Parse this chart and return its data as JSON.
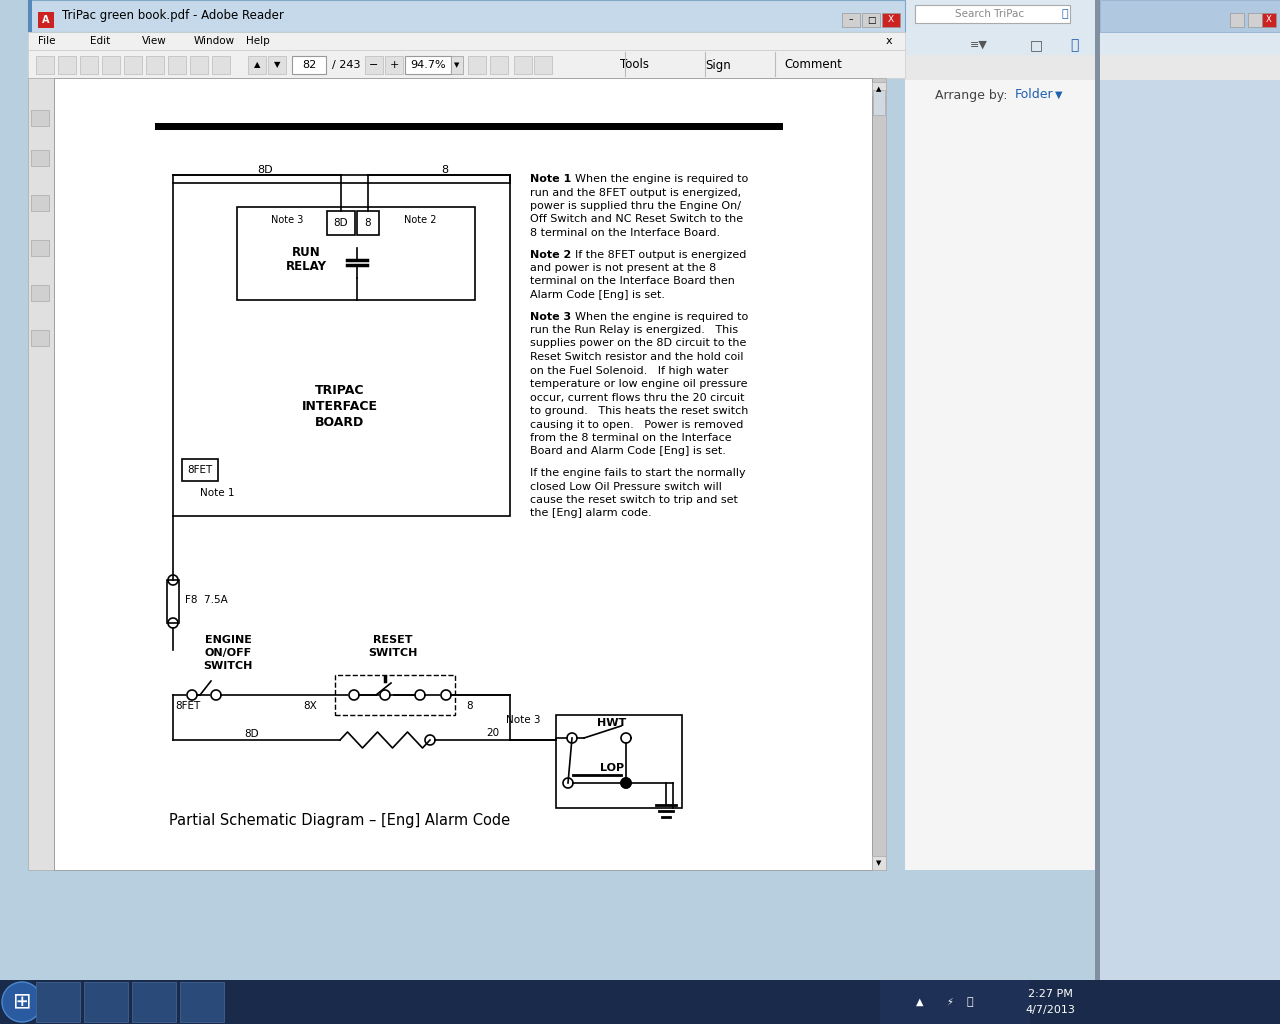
{
  "diagram_title": "Partial Schematic Diagram – [Eng] Alarm Code",
  "note1_bold": "Note 1",
  "note1_rest": "  When the engine is required to",
  "note1_lines": [
    "run and the 8FET output is energized,",
    "power is supplied thru the Engine On/",
    "Off Switch and NC Reset Switch to the",
    "8 terminal on the Interface Board."
  ],
  "note2_bold": "Note 2",
  "note2_rest": "  If the 8FET output is energized",
  "note2_lines": [
    "and power is not present at the 8",
    "terminal on the Interface Board then",
    "Alarm Code [Eng] is set."
  ],
  "note3_bold": "Note 3",
  "note3_rest": "  When the engine is required to",
  "note3_lines": [
    "run the Run Relay is energized.   This",
    "supplies power on the 8D circuit to the",
    "Reset Switch resistor and the hold coil",
    "on the Fuel Solenoid.   If high water",
    "temperature or low engine oil pressure",
    "occur, current flows thru the 20 circuit",
    "to ground.   This heats the reset switch",
    "causing it to open.   Power is removed",
    "from the 8 terminal on the Interface",
    "Board and Alarm Code [Eng] is set."
  ],
  "extra_lines": [
    "If the engine fails to start the normally",
    "closed Low Oil Pressure switch will",
    "cause the reset switch to trip and set",
    "the [Eng] alarm code."
  ],
  "win7_taskbar_color": "#1a3a5c",
  "titlebar_bg": "#bad0e8",
  "menubar_bg": "#f0f0f0",
  "toolbar_bg": "#f0f0f0",
  "doc_bg": "#ffffff",
  "right_panel_bg": "#f5f5f5",
  "scroll_bg": "#cccccc"
}
